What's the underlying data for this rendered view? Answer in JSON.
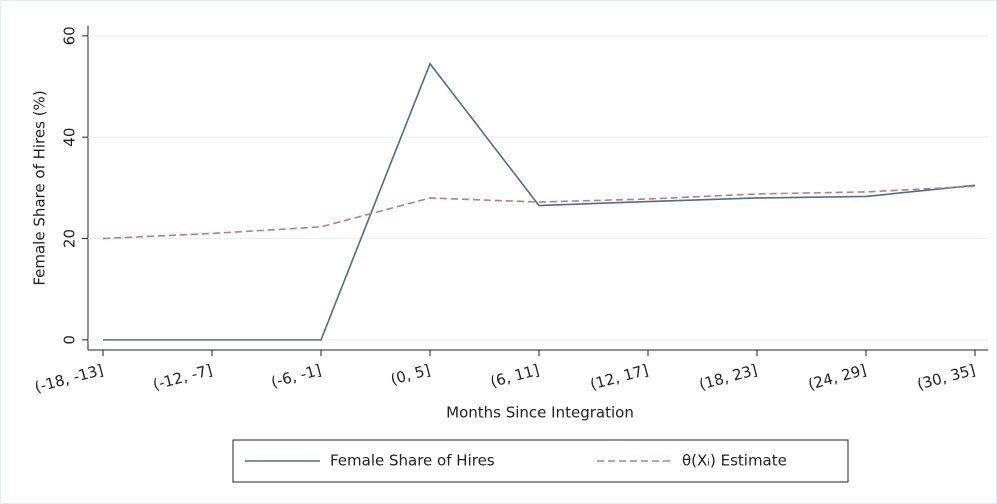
{
  "chart_data": {
    "type": "line",
    "x_label": "Months Since Integration",
    "y_label": "Female Share of Hires (%)",
    "categories": [
      "(-18, -13]",
      "(-12, -7]",
      "(-6, -1]",
      "(0, 5]",
      "(6, 11]",
      "(12, 17]",
      "(18, 23]",
      "(24, 29]",
      "(30, 35]"
    ],
    "series": [
      {
        "name": "Female Share of Hires",
        "color": "#4d6d8e",
        "dash": false,
        "values": [
          0,
          0,
          0,
          54.5,
          26.5,
          27.3,
          28,
          28.3,
          30.5
        ]
      },
      {
        "name": "θ(Xᵢ) Estimate",
        "color": "#bd7b7e",
        "dash": true,
        "values": [
          20,
          21,
          22.3,
          28,
          27.2,
          27.8,
          28.8,
          29.2,
          30.3
        ]
      }
    ],
    "ylim": [
      -2,
      62
    ],
    "yticks": [
      0,
      20,
      40,
      60
    ],
    "grid": true,
    "legend": "bottom"
  }
}
